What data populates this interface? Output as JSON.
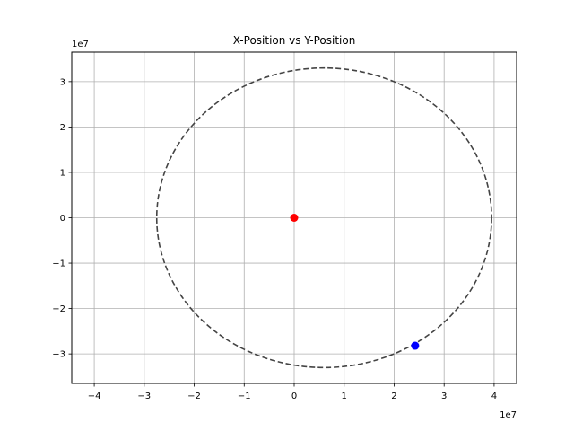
{
  "chart_data": {
    "type": "scatter",
    "title": "X-Position vs Y-Position",
    "xlabel": "",
    "ylabel": "",
    "x_offset_label": "1e7",
    "y_offset_label": "1e7",
    "xlim": [
      -4.45,
      4.45
    ],
    "ylim": [
      -3.65,
      3.65
    ],
    "x_ticks": [
      -4,
      -3,
      -2,
      -1,
      0,
      1,
      2,
      3,
      4
    ],
    "y_ticks": [
      -3,
      -2,
      -1,
      0,
      1,
      2,
      3
    ],
    "x_tick_labels": [
      "−4",
      "−3",
      "−2",
      "−1",
      "0",
      "1",
      "2",
      "3",
      "4"
    ],
    "y_tick_labels": [
      "−3",
      "−2",
      "−1",
      "0",
      "1",
      "2",
      "3"
    ],
    "grid": true,
    "orbit": {
      "style": "dashed",
      "color": "#444444",
      "center": [
        0.6,
        0.0
      ],
      "semi_axis_x": 3.35,
      "semi_axis_y": 3.3
    },
    "points": [
      {
        "x": 0.0,
        "y": 0.0,
        "color": "#ff0000"
      },
      {
        "x": 2.42,
        "y": -2.82,
        "color": "#0000ff"
      }
    ]
  }
}
